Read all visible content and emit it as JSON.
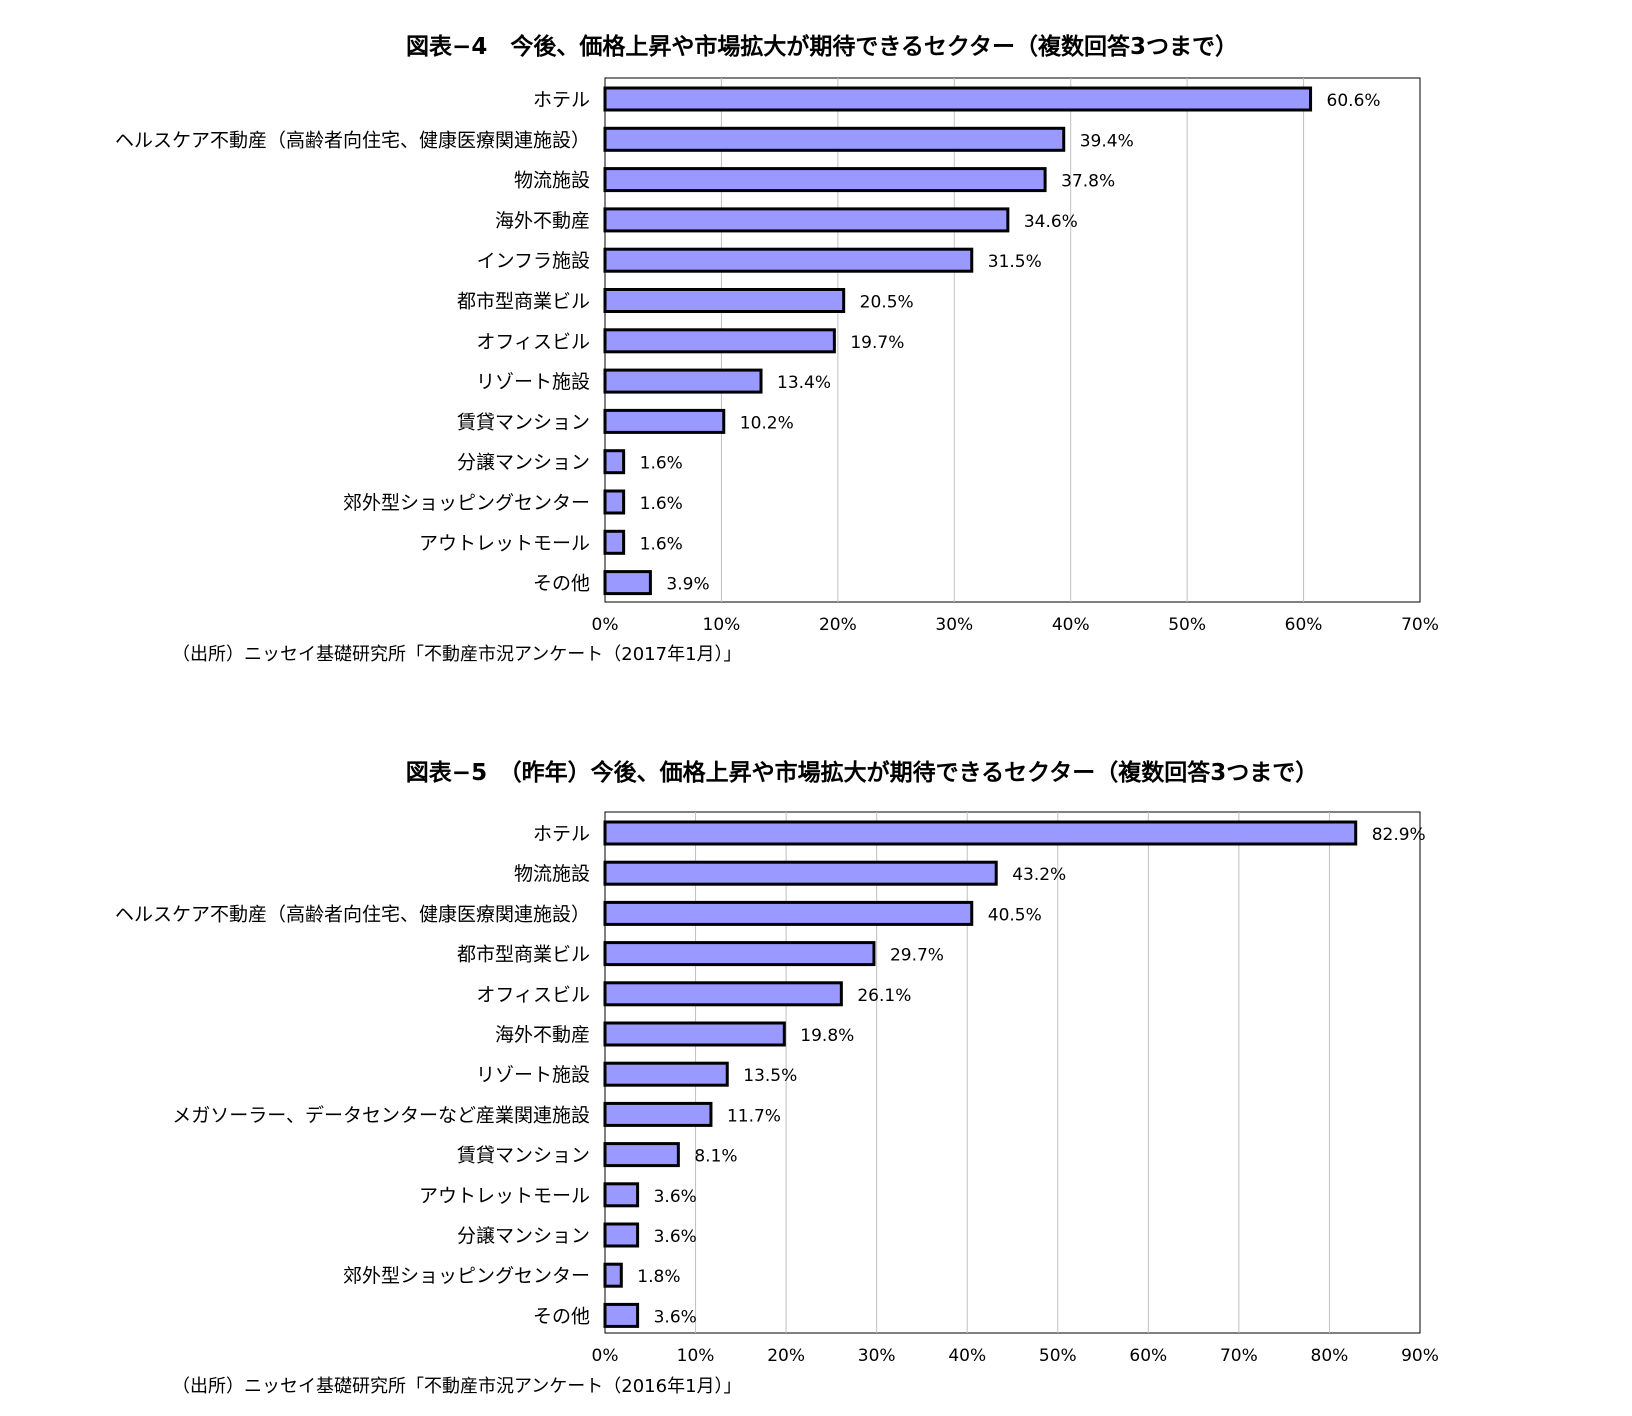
{
  "chart_data": [
    {
      "type": "bar",
      "orientation": "horizontal",
      "title": "図表−4　今後、価格上昇や市場拡大が期待できるセクター（複数回答3つまで）",
      "source": "（出所）ニッセイ基礎研究所「不動産市況アンケート（2017年1月）」",
      "categories": [
        "ホテル",
        "ヘルスケア不動産（高齢者向住宅、健康医療関連施設）",
        "物流施設",
        "海外不動産",
        "インフラ施設",
        "都市型商業ビル",
        "オフィスビル",
        "リゾート施設",
        "賃貸マンション",
        "分譲マンション",
        "郊外型ショッピングセンター",
        "アウトレットモール",
        "その他"
      ],
      "values": [
        60.6,
        39.4,
        37.8,
        34.6,
        31.5,
        20.5,
        19.7,
        13.4,
        10.2,
        1.6,
        1.6,
        1.6,
        3.9
      ],
      "value_labels": [
        "60.6%",
        "39.4%",
        "37.8%",
        "34.6%",
        "31.5%",
        "20.5%",
        "19.7%",
        "13.4%",
        "10.2%",
        "1.6%",
        "1.6%",
        "1.6%",
        "3.9%"
      ],
      "xlim": [
        0,
        70
      ],
      "xticks": [
        0,
        10,
        20,
        30,
        40,
        50,
        60,
        70
      ],
      "xtick_labels": [
        "0%",
        "10%",
        "20%",
        "30%",
        "40%",
        "50%",
        "60%",
        "70%"
      ],
      "grid": "vertical",
      "bar_color": "#9999ff",
      "xlabel": "",
      "ylabel": ""
    },
    {
      "type": "bar",
      "orientation": "horizontal",
      "title": "図表−5　（昨年）今後、価格上昇や市場拡大が期待できるセクター（複数回答3つまで）",
      "source": "（出所）ニッセイ基礎研究所「不動産市況アンケート（2016年1月）」",
      "categories": [
        "ホテル",
        "物流施設",
        "ヘルスケア不動産（高齢者向住宅、健康医療関連施設）",
        "都市型商業ビル",
        "オフィスビル",
        "海外不動産",
        "リゾート施設",
        "メガソーラー、データセンターなど産業関連施設",
        "賃貸マンション",
        "アウトレットモール",
        "分譲マンション",
        "郊外型ショッピングセンター",
        "その他"
      ],
      "values": [
        82.9,
        43.2,
        40.5,
        29.7,
        26.1,
        19.8,
        13.5,
        11.7,
        8.1,
        3.6,
        3.6,
        1.8,
        3.6
      ],
      "value_labels": [
        "82.9%",
        "43.2%",
        "40.5%",
        "29.7%",
        "26.1%",
        "19.8%",
        "13.5%",
        "11.7%",
        "8.1%",
        "3.6%",
        "3.6%",
        "1.8%",
        "3.6%"
      ],
      "xlim": [
        0,
        90
      ],
      "xticks": [
        0,
        10,
        20,
        30,
        40,
        50,
        60,
        70,
        80,
        90
      ],
      "xtick_labels": [
        "0%",
        "10%",
        "20%",
        "30%",
        "40%",
        "50%",
        "60%",
        "70%",
        "80%",
        "90%"
      ],
      "grid": "vertical",
      "bar_color": "#9999ff",
      "xlabel": "",
      "ylabel": ""
    }
  ]
}
